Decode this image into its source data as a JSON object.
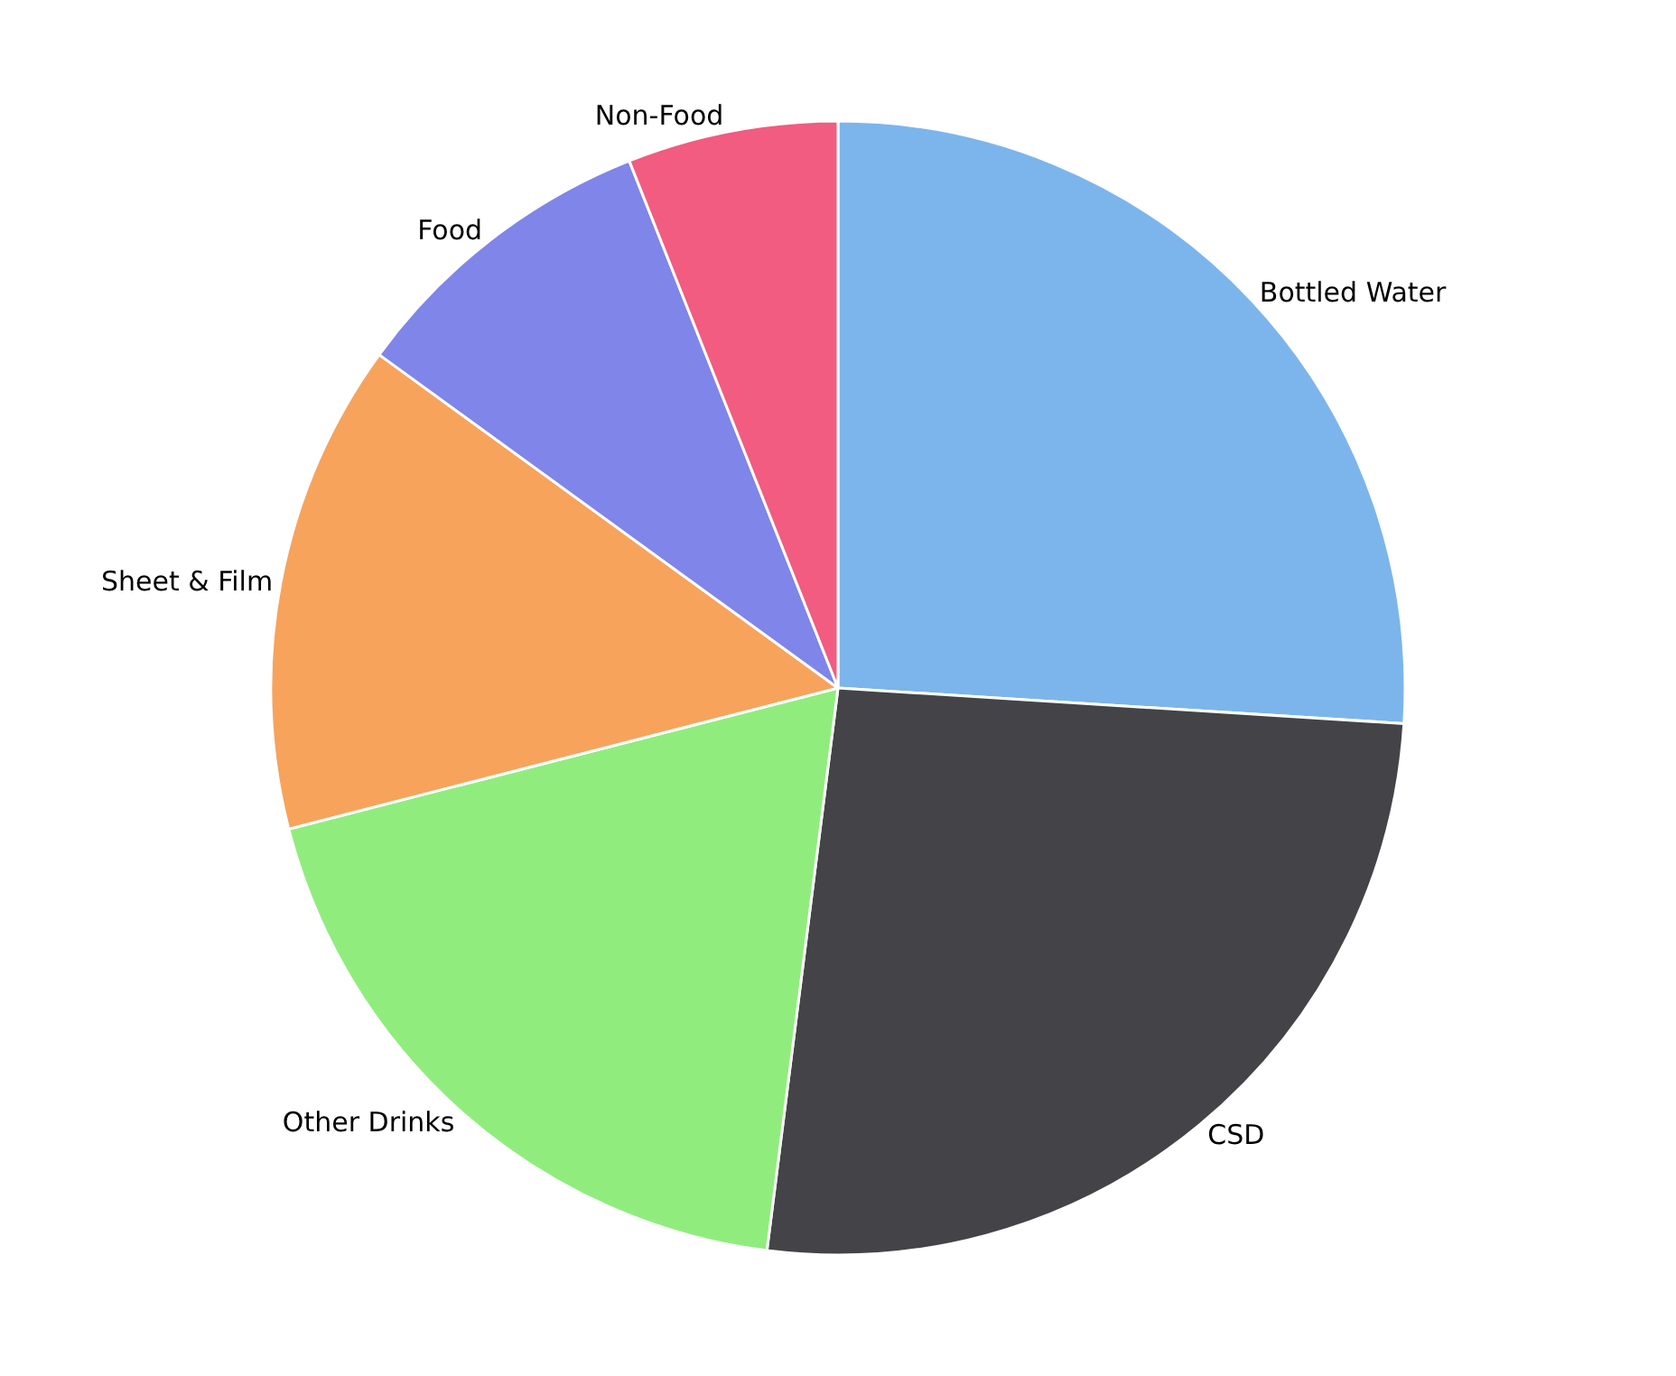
{
  "chart_data": {
    "type": "pie",
    "categories": [
      "Bottled Water",
      "CSD",
      "Other Drinks",
      "Sheet & Film",
      "Food",
      "Non-Food"
    ],
    "values": [
      26,
      26,
      19,
      14,
      9,
      6
    ],
    "colors": [
      "#7cb5ec",
      "#434348",
      "#90ed7d",
      "#f7a35c",
      "#8085e9",
      "#f15c80"
    ],
    "legend": false
  }
}
